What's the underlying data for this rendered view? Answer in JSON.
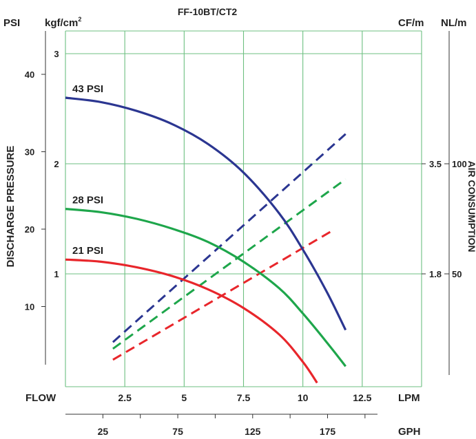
{
  "chart_data": {
    "type": "line",
    "title": "FF-10BT/CT2",
    "y_axis_title": "DISCHARGE PRESSURE",
    "y_right_title": "AIR CONSUMPTION",
    "x_axis_title": "FLOW",
    "units": {
      "psi": "PSI",
      "kgf": "kgf/cm",
      "kgf_sup": "2",
      "cfm": "CF/m",
      "nlm": "NL/m",
      "lpm": "LPM",
      "gph": "GPH"
    },
    "xlim": [
      0,
      15
    ],
    "ylim_kgf": [
      0,
      3.4
    ],
    "lpm_ticks": [
      2.5,
      5,
      7.5,
      10,
      12.5
    ],
    "lpm_tick_labels": [
      "2.5",
      "5",
      "7.5",
      "10",
      "12.5"
    ],
    "gph_ticks": [
      25,
      75,
      125,
      175
    ],
    "gph_tick_labels": [
      "25",
      "75",
      "125",
      "175"
    ],
    "gph_minor_ticks": [
      50,
      100,
      150,
      200
    ],
    "kgf_ticks": [
      1,
      2,
      3
    ],
    "kgf_tick_labels": [
      "1",
      "2",
      "3"
    ],
    "psi_ticks": [
      10,
      20,
      30,
      40
    ],
    "psi_tick_labels": [
      "10",
      "20",
      "30",
      "40"
    ],
    "cfm_ticks": [
      1.8,
      3.5
    ],
    "cfm_tick_labels": [
      "1.8",
      "3.5"
    ],
    "nlm_ticks": [
      50,
      100
    ],
    "nlm_tick_labels": [
      "50",
      "100"
    ],
    "grid": true,
    "pressure_curves": [
      {
        "name": "43 PSI",
        "color": "#2b3691",
        "x": [
          0,
          1.5,
          3,
          4.5,
          6,
          7.5,
          9,
          10,
          11,
          11.8
        ],
        "y": [
          2.6,
          2.56,
          2.48,
          2.36,
          2.18,
          1.92,
          1.55,
          1.22,
          0.84,
          0.49
        ]
      },
      {
        "name": "28 PSI",
        "color": "#1ea64b",
        "x": [
          0,
          1.5,
          3,
          4.5,
          6,
          7.5,
          9,
          10,
          11,
          11.8
        ],
        "y": [
          1.59,
          1.56,
          1.5,
          1.41,
          1.29,
          1.11,
          0.87,
          0.64,
          0.38,
          0.16
        ]
      },
      {
        "name": "21 PSI",
        "color": "#e8262b",
        "x": [
          0,
          1.5,
          3,
          4.5,
          6,
          7.5,
          9,
          10,
          10.6
        ],
        "y": [
          1.13,
          1.11,
          1.06,
          0.98,
          0.86,
          0.69,
          0.45,
          0.2,
          0.01
        ]
      }
    ],
    "air_consumption": [
      {
        "color": "#2b3691",
        "x": [
          2,
          11.8
        ],
        "y": [
          0.38,
          2.27
        ]
      },
      {
        "color": "#1ea64b",
        "x": [
          2,
          11.8
        ],
        "y": [
          0.32,
          1.86
        ]
      },
      {
        "color": "#e8262b",
        "x": [
          2,
          11.3
        ],
        "y": [
          0.22,
          1.4
        ]
      }
    ]
  }
}
